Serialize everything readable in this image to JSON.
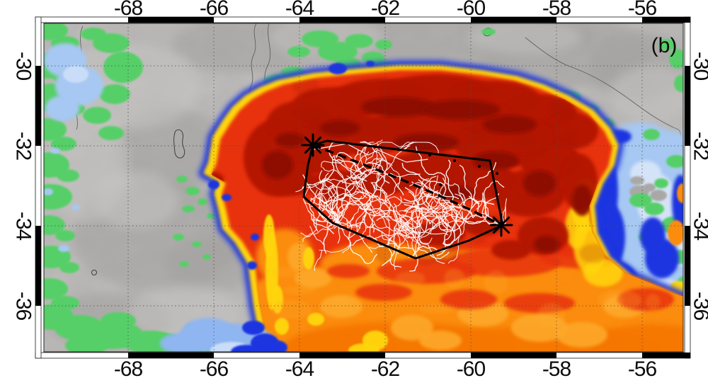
{
  "figure": {
    "panel_label": "(b)",
    "axes": {
      "top_ticks": [
        "-68",
        "-66",
        "-64",
        "-62",
        "-60",
        "-58",
        "-56"
      ],
      "bottom_ticks": [
        "-68",
        "-66",
        "-64",
        "-62",
        "-60",
        "-58",
        "-56"
      ],
      "left_ticks": [
        "-30",
        "-32",
        "-34",
        "-36"
      ],
      "right_ticks": [
        "-30",
        "-32",
        "-34",
        "-36"
      ]
    },
    "legend_colors": {
      "terrain_gray": "#b4b2b0",
      "vegetation_green": "#56cf67",
      "cold_cloud_light_blue": "#a6c8f2",
      "cold_cloud_blue": "#1f35e0",
      "anvil_yellow": "#ffd60a",
      "anvil_orange": "#fb8c0a",
      "anvil_red": "#e8330b",
      "anvil_dark_red": "#b21405",
      "overshoot_maroon": "#8c0e05",
      "hull_outline": "#000000",
      "flash_traces": "#ffffff"
    }
  }
}
